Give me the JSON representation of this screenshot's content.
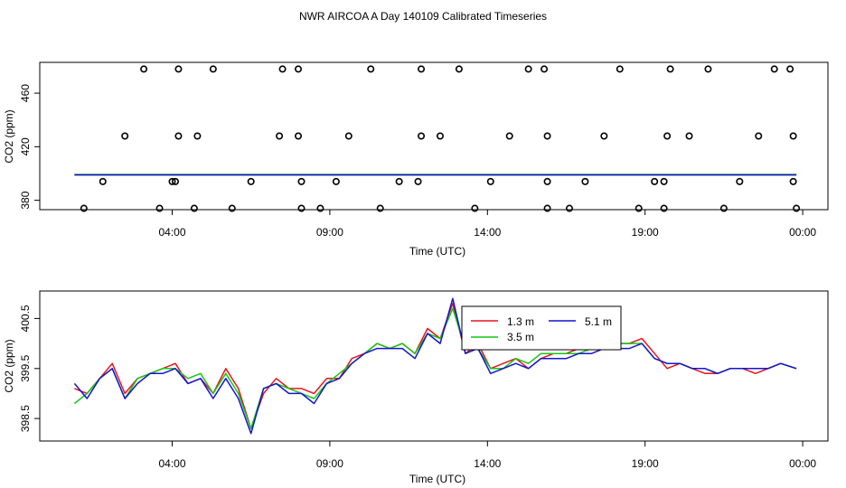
{
  "title": "NWR AIRCOA A  Day 140109  Calibrated Timeseries",
  "colors": {
    "red": "#e8141c",
    "green": "#14c814",
    "blue": "#1414d2",
    "black": "#000000"
  },
  "chart_data": [
    {
      "type": "scatter",
      "xlabel": "Time (UTC)",
      "ylabel": "CO2 (ppm)",
      "x_ticks": [
        "04:00",
        "09:00",
        "14:00",
        "19:00",
        "00:00"
      ],
      "x_tick_hours": [
        4,
        9,
        14,
        19,
        24
      ],
      "xlim_hours": [
        -0.2,
        24.8
      ],
      "y_ticks": [
        "380",
        "420",
        "460"
      ],
      "y_tick_values": [
        380,
        420,
        460
      ],
      "ylim": [
        373,
        483
      ],
      "grid": false,
      "outliers": {
        "name": "flagged samples",
        "points": [
          [
            1.2,
            374
          ],
          [
            1.8,
            394
          ],
          [
            2.5,
            428
          ],
          [
            3.1,
            478
          ],
          [
            3.6,
            374
          ],
          [
            4.0,
            394
          ],
          [
            4.7,
            374
          ],
          [
            4.1,
            394
          ],
          [
            4.8,
            428
          ],
          [
            4.2,
            428
          ],
          [
            4.2,
            478
          ],
          [
            5.3,
            478
          ],
          [
            5.9,
            374
          ],
          [
            6.5,
            394
          ],
          [
            7.4,
            428
          ],
          [
            7.5,
            478
          ],
          [
            8.0,
            478
          ],
          [
            8.0,
            428
          ],
          [
            8.1,
            394
          ],
          [
            8.1,
            374
          ],
          [
            8.7,
            374
          ],
          [
            9.2,
            394
          ],
          [
            9.6,
            428
          ],
          [
            10.3,
            478
          ],
          [
            10.6,
            374
          ],
          [
            11.2,
            394
          ],
          [
            11.8,
            394
          ],
          [
            11.9,
            428
          ],
          [
            11.9,
            478
          ],
          [
            12.5,
            428
          ],
          [
            13.1,
            478
          ],
          [
            13.6,
            374
          ],
          [
            14.1,
            394
          ],
          [
            14.7,
            428
          ],
          [
            15.3,
            478
          ],
          [
            15.8,
            478
          ],
          [
            15.9,
            428
          ],
          [
            15.9,
            394
          ],
          [
            15.9,
            374
          ],
          [
            16.6,
            374
          ],
          [
            17.1,
            394
          ],
          [
            17.7,
            428
          ],
          [
            18.2,
            478
          ],
          [
            18.8,
            374
          ],
          [
            19.3,
            394
          ],
          [
            19.6,
            394
          ],
          [
            19.6,
            374
          ],
          [
            19.7,
            428
          ],
          [
            19.8,
            478
          ],
          [
            20.4,
            428
          ],
          [
            21.0,
            478
          ],
          [
            21.5,
            374
          ],
          [
            22.0,
            394
          ],
          [
            22.6,
            428
          ],
          [
            23.1,
            478
          ],
          [
            23.6,
            478
          ],
          [
            23.7,
            428
          ],
          [
            23.7,
            394
          ],
          [
            23.8,
            374
          ]
        ]
      },
      "lines_level": 399.2,
      "lines_xrange_hours": [
        0.9,
        23.8
      ]
    },
    {
      "type": "line",
      "xlabel": "Time (UTC)",
      "ylabel": "CO2 (ppm)",
      "x_ticks": [
        "04:00",
        "09:00",
        "14:00",
        "19:00",
        "00:00"
      ],
      "x_tick_hours": [
        4,
        9,
        14,
        19,
        24
      ],
      "xlim_hours": [
        -0.2,
        24.8
      ],
      "y_ticks": [
        "398.5",
        "399.5",
        "400.5"
      ],
      "y_tick_values": [
        398.5,
        399.5,
        400.5
      ],
      "ylim": [
        398.05,
        401.05
      ],
      "grid": false,
      "legend": {
        "entries": [
          {
            "label": "1.3 m",
            "color": "red"
          },
          {
            "label": "5.1 m",
            "color": "blue"
          },
          {
            "label": "3.5 m",
            "color": "green"
          }
        ]
      },
      "x_hours": [
        0.9,
        1.3,
        1.7,
        2.1,
        2.5,
        2.9,
        3.3,
        3.7,
        4.1,
        4.5,
        4.9,
        5.3,
        5.7,
        6.1,
        6.5,
        6.9,
        7.3,
        7.7,
        8.1,
        8.5,
        8.9,
        9.3,
        9.7,
        10.1,
        10.5,
        10.9,
        11.3,
        11.7,
        12.1,
        12.5,
        12.9,
        13.3,
        13.7,
        14.1,
        14.5,
        14.9,
        15.3,
        15.7,
        16.1,
        16.5,
        16.9,
        17.3,
        17.7,
        18.1,
        18.5,
        18.9,
        19.3,
        19.7,
        20.1,
        20.5,
        20.9,
        21.3,
        21.7,
        22.1,
        22.5,
        22.9,
        23.3,
        23.8
      ],
      "series": [
        {
          "name": "1.3 m",
          "color": "red",
          "values": [
            399.1,
            399.0,
            399.3,
            399.6,
            399.0,
            399.3,
            399.4,
            399.5,
            399.6,
            399.2,
            399.3,
            399.0,
            399.5,
            399.1,
            398.3,
            399.0,
            399.3,
            399.1,
            399.1,
            399.0,
            399.3,
            399.3,
            399.7,
            399.8,
            400.0,
            399.9,
            400.0,
            399.8,
            400.3,
            400.1,
            400.8,
            399.8,
            400.0,
            399.5,
            399.6,
            399.7,
            399.5,
            399.7,
            399.8,
            399.8,
            399.9,
            399.9,
            400.0,
            400.0,
            400.0,
            400.1,
            399.8,
            399.5,
            399.6,
            399.5,
            399.4,
            399.4,
            399.5,
            399.5,
            399.4,
            399.5,
            399.6,
            399.5
          ]
        },
        {
          "name": "3.5 m",
          "color": "green",
          "values": [
            398.8,
            399.0,
            399.3,
            399.5,
            398.9,
            399.3,
            399.4,
            399.5,
            399.5,
            399.3,
            399.4,
            399.0,
            399.4,
            399.0,
            398.3,
            399.1,
            399.2,
            399.1,
            399.0,
            398.9,
            399.2,
            399.4,
            399.6,
            399.8,
            400.0,
            399.9,
            400.0,
            399.8,
            400.2,
            400.1,
            400.7,
            399.9,
            399.9,
            399.5,
            399.5,
            399.7,
            399.6,
            399.8,
            399.8,
            399.8,
            399.8,
            399.9,
            399.9,
            400.0,
            400.0,
            400.0,
            399.7,
            399.6,
            399.6,
            399.5,
            399.5,
            399.4,
            399.5,
            399.5,
            399.5,
            399.5,
            399.6,
            399.5
          ]
        },
        {
          "name": "5.1 m",
          "color": "blue",
          "values": [
            399.2,
            398.9,
            399.3,
            399.5,
            398.9,
            399.2,
            399.4,
            399.4,
            399.5,
            399.2,
            399.3,
            398.9,
            399.3,
            398.9,
            398.2,
            399.1,
            399.2,
            399.0,
            399.0,
            398.8,
            399.2,
            399.3,
            399.6,
            399.8,
            399.9,
            399.9,
            399.9,
            399.7,
            400.2,
            400.0,
            400.9,
            399.8,
            399.9,
            399.4,
            399.5,
            399.6,
            399.5,
            399.7,
            399.7,
            399.7,
            399.8,
            399.8,
            399.9,
            399.9,
            399.9,
            400.0,
            399.7,
            399.6,
            399.6,
            399.5,
            399.5,
            399.4,
            399.5,
            399.5,
            399.5,
            399.5,
            399.6,
            399.5
          ]
        }
      ]
    }
  ]
}
